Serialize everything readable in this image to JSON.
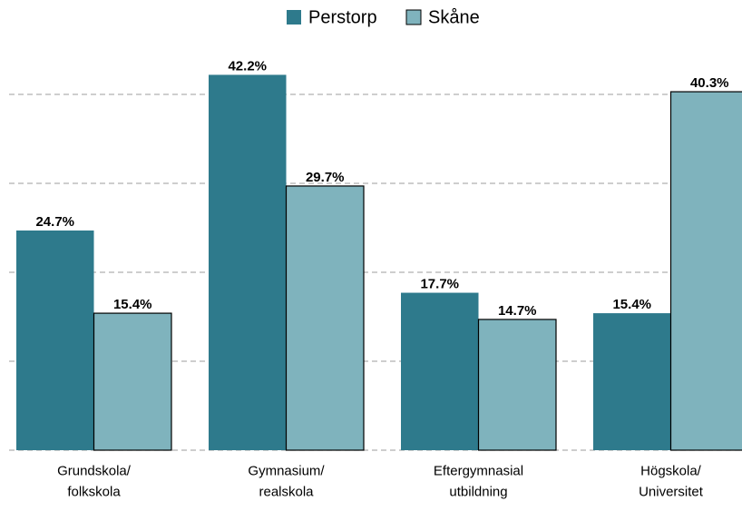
{
  "chart_data": {
    "type": "bar",
    "categories": [
      "Grundskola/\nfolkskola",
      "Gymnasium/\nrealskola",
      "Eftergymnasial\nutbildning",
      "Högskola/\nUniversitet"
    ],
    "series": [
      {
        "name": "Perstorp",
        "color": "#2e7a8c",
        "values": [
          24.7,
          42.2,
          17.7,
          15.4
        ],
        "value_labels": [
          "24.7%",
          "42.2%",
          "17.7%",
          "15.4%"
        ]
      },
      {
        "name": "Skåne",
        "color": "#7fb3bd",
        "values": [
          15.4,
          29.7,
          14.7,
          40.3
        ],
        "value_labels": [
          "15.4%",
          "29.7%",
          "14.7%",
          "40.3%"
        ]
      }
    ],
    "ylim": [
      0,
      45
    ],
    "yticks": [
      0,
      10,
      20,
      30,
      40
    ],
    "grid": true,
    "legend": "top"
  }
}
